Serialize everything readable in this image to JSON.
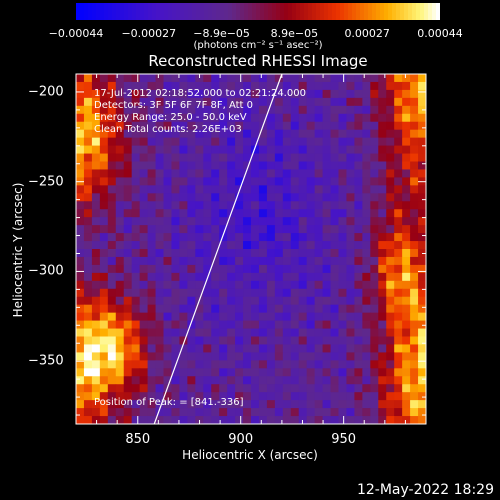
{
  "colorbar": {
    "tick_labels": [
      "−0.00044",
      "−0.00027",
      "−8.9e−05",
      "8.9e−05",
      "0.00027",
      "0.00044"
    ],
    "units_label": "(photons cm⁻² s⁻¹ asec⁻²)",
    "range": [
      -0.00044,
      0.00044
    ]
  },
  "chart_data": {
    "type": "heatmap",
    "title": "Reconstructed RHESSI Image",
    "xlabel": "Heliocentric X (arcsec)",
    "ylabel": "Heliocentric Y (arcsec)",
    "xlim": [
      820,
      990
    ],
    "ylim": [
      -385,
      -190
    ],
    "x_ticks": [
      850,
      900,
      950
    ],
    "y_ticks": [
      -200,
      -250,
      -300,
      -350
    ],
    "colormap": "blue-purple-red-orange-yellow-white",
    "info_lines": [
      "17-Jul-2012 02:18:52.000 to 02:21:24.000",
      "Detectors: 3F 5F 6F 7F 8F, Att 0",
      "Energy Range: 25.0 - 50.0 keV",
      "Clean     Total counts: 2.26E+03"
    ],
    "peak_label": "Position of Peak: = [841.-336]",
    "peak_position": [
      841,
      -336
    ],
    "limb_line": [
      [
        858,
        -385
      ],
      [
        920,
        -190
      ]
    ]
  },
  "footer": {
    "timestamp": "12-May-2022 18:29"
  }
}
